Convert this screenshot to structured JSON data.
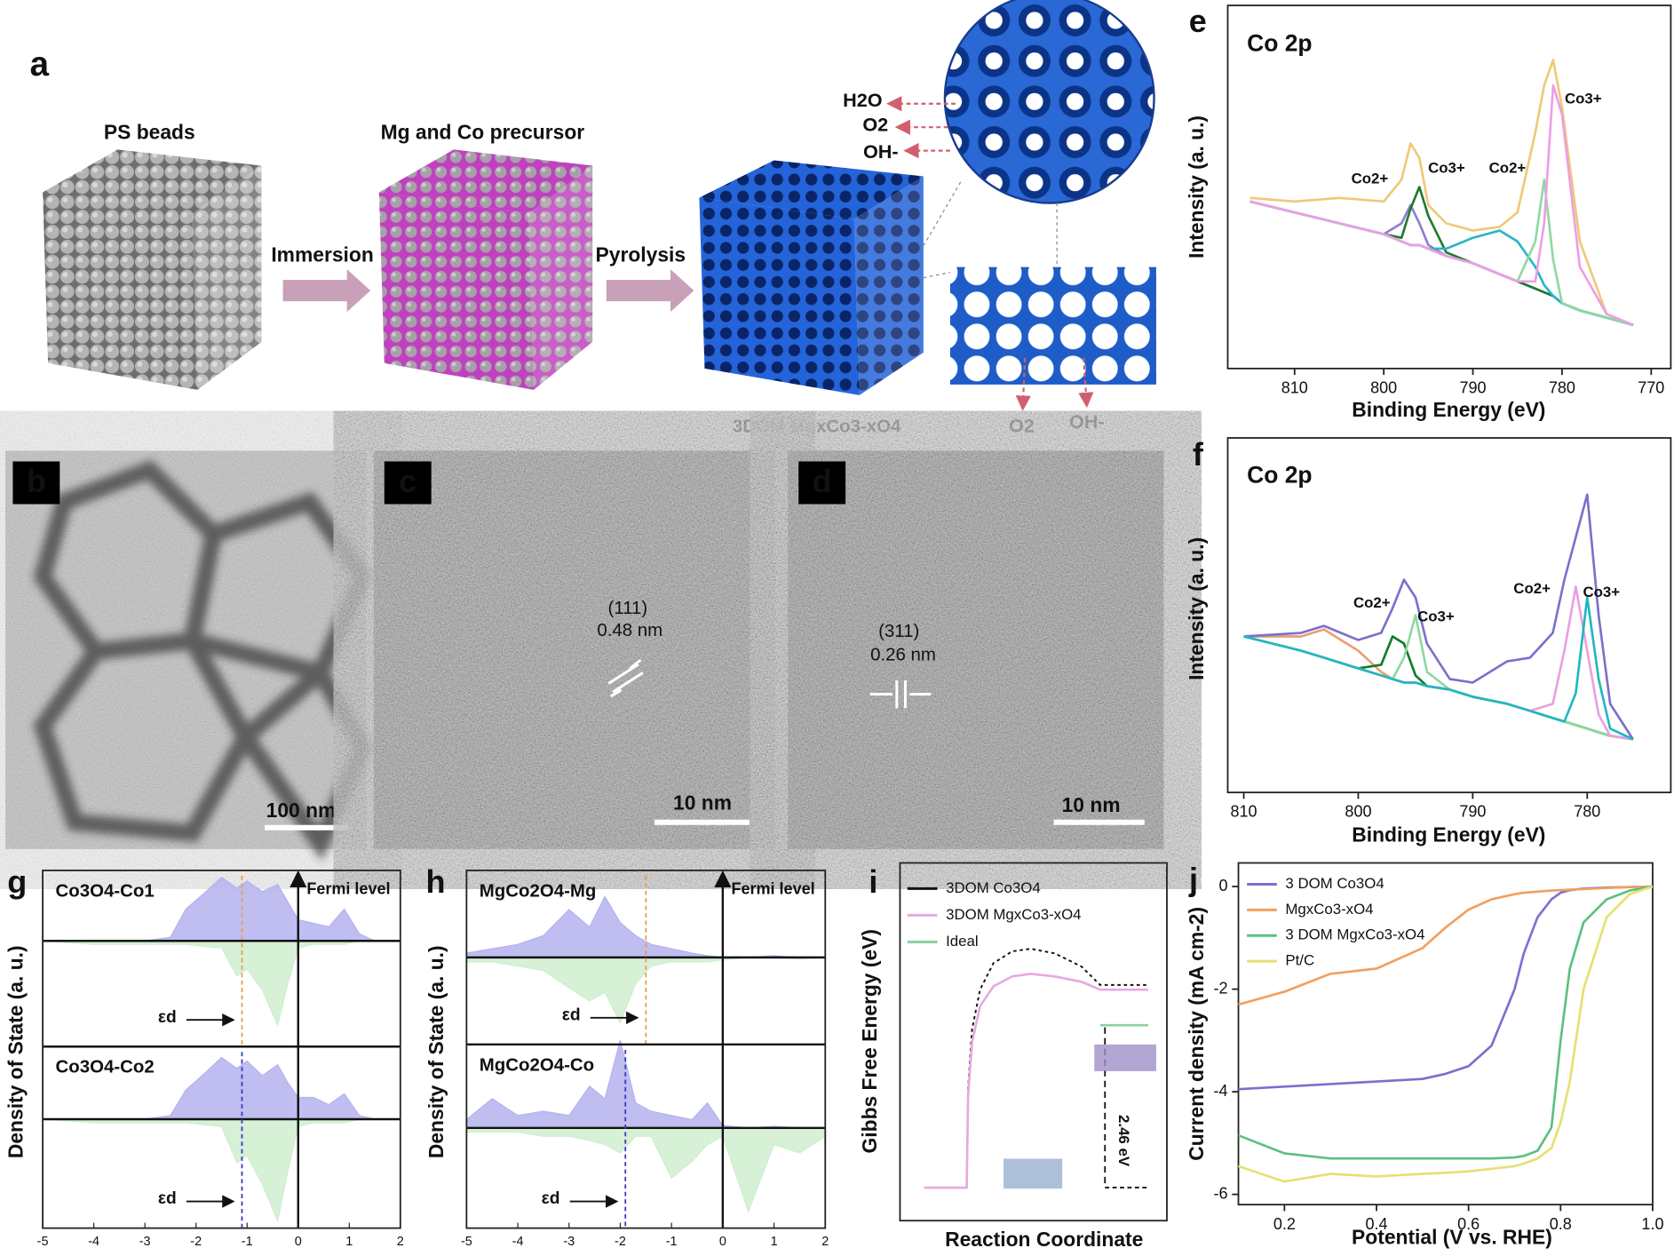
{
  "panel_labels": [
    "a",
    "b",
    "c",
    "d",
    "e",
    "f",
    "g",
    "h",
    "i",
    "j"
  ],
  "schematic": {
    "ps_beads": "PS beads",
    "precursor": "Mg and Co  precursor",
    "immersion": "Immersion",
    "pyrolysis": "Pyrolysis",
    "product": "3DOM MgxCo3-xO4",
    "species_out": [
      "H2O",
      "O2",
      "OH-"
    ],
    "species_bottom": [
      "O2",
      "OH-"
    ]
  },
  "tem": {
    "b_scale": "100 nm",
    "c_plane": "(111)",
    "c_spacing": "0.48 nm",
    "c_scale": "10 nm",
    "d_plane": "(311)",
    "d_spacing": "0.26 nm",
    "d_scale": "10 nm"
  },
  "chart_data": [
    {
      "type": "line",
      "title": "Co 2p",
      "xlabel": "Binding Energy (eV)",
      "ylabel": "Intensity (a. u.)",
      "xlim": [
        817.5,
        767.8
      ],
      "xticks": [
        810,
        800,
        790,
        780,
        770
      ],
      "ylim": [
        0,
        1
      ],
      "yticks": [],
      "annotations": [
        "Co2+",
        "Co3+",
        "Co2+",
        "Co3+"
      ],
      "x": [
        815,
        810,
        805,
        800,
        798,
        797,
        796,
        795,
        793,
        790,
        787,
        785,
        783,
        782,
        781,
        780,
        778,
        775,
        772
      ],
      "series": [
        {
          "color": "#f0c878",
          "values": [
            0.47,
            0.46,
            0.47,
            0.46,
            0.52,
            0.62,
            0.58,
            0.45,
            0.4,
            0.38,
            0.39,
            0.43,
            0.65,
            0.78,
            0.85,
            0.72,
            0.35,
            0.15,
            0.12
          ]
        },
        {
          "color": "#4f72c8",
          "values": [
            0.46,
            0.43,
            0.4,
            0.37,
            0.35,
            0.34,
            0.34,
            0.33,
            0.31,
            0.29,
            0.26,
            0.24,
            0.22,
            0.21,
            0.2,
            0.18,
            0.16,
            0.14,
            0.12
          ]
        },
        {
          "color": "#8a80d0",
          "values": [
            0.46,
            0.43,
            0.4,
            0.37,
            0.4,
            0.45,
            0.4,
            0.34,
            0.31,
            0.29,
            0.26,
            0.24,
            0.22,
            0.21,
            0.2,
            0.18,
            0.16,
            0.14,
            0.12
          ]
        },
        {
          "color": "#1f7a2e",
          "values": [
            0.46,
            0.43,
            0.4,
            0.37,
            0.36,
            0.44,
            0.5,
            0.42,
            0.32,
            0.29,
            0.26,
            0.24,
            0.22,
            0.21,
            0.2,
            0.18,
            0.16,
            0.14,
            0.12
          ]
        },
        {
          "color": "#2ab5c8",
          "values": [
            0.46,
            0.43,
            0.4,
            0.37,
            0.35,
            0.34,
            0.34,
            0.33,
            0.33,
            0.36,
            0.38,
            0.35,
            0.28,
            0.23,
            0.2,
            0.18,
            0.16,
            0.14,
            0.12
          ]
        },
        {
          "color": "#8fd9a0",
          "values": [
            0.46,
            0.43,
            0.4,
            0.37,
            0.35,
            0.34,
            0.34,
            0.33,
            0.31,
            0.29,
            0.26,
            0.24,
            0.35,
            0.52,
            0.3,
            0.18,
            0.16,
            0.14,
            0.12
          ]
        },
        {
          "color": "#ee9ee6",
          "values": [
            0.46,
            0.43,
            0.4,
            0.37,
            0.35,
            0.34,
            0.34,
            0.33,
            0.31,
            0.29,
            0.26,
            0.24,
            0.24,
            0.4,
            0.78,
            0.7,
            0.28,
            0.15,
            0.12
          ]
        }
      ]
    },
    {
      "type": "line",
      "title": "Co 2p",
      "xlabel": "Binding Energy (eV)",
      "ylabel": "Intensity (a. u.)",
      "xlim": [
        811.4,
        772.7
      ],
      "xticks": [
        810,
        800,
        790,
        780
      ],
      "ylim": [
        0,
        1
      ],
      "yticks": [],
      "annotations": [
        "Co2+",
        "Co3+",
        "Co2+",
        "Co3+"
      ],
      "x": [
        810,
        805,
        803,
        800,
        798,
        797,
        796,
        795,
        794,
        792,
        790,
        787,
        785,
        783,
        782,
        781,
        780,
        779,
        778,
        776
      ],
      "series": [
        {
          "color": "#e0e070",
          "values": [
            0.44,
            0.4,
            0.38,
            0.35,
            0.33,
            0.32,
            0.31,
            0.31,
            0.3,
            0.29,
            0.27,
            0.25,
            0.23,
            0.21,
            0.2,
            0.19,
            0.18,
            0.17,
            0.16,
            0.15
          ]
        },
        {
          "color": "#e8a070",
          "values": [
            0.44,
            0.44,
            0.46,
            0.4,
            0.34,
            0.32,
            0.31,
            0.31,
            0.3,
            0.29,
            0.27,
            0.25,
            0.23,
            0.21,
            0.2,
            0.19,
            0.18,
            0.17,
            0.16,
            0.15
          ]
        },
        {
          "color": "#7b70cc",
          "values": [
            0.44,
            0.45,
            0.47,
            0.43,
            0.45,
            0.52,
            0.6,
            0.55,
            0.42,
            0.32,
            0.31,
            0.37,
            0.38,
            0.45,
            0.6,
            0.72,
            0.84,
            0.5,
            0.25,
            0.15
          ]
        },
        {
          "color": "#137a2a",
          "values": [
            0.44,
            0.4,
            0.38,
            0.35,
            0.36,
            0.44,
            0.42,
            0.33,
            0.3,
            0.29,
            0.27,
            0.25,
            0.23,
            0.21,
            0.2,
            0.19,
            0.18,
            0.17,
            0.16,
            0.15
          ]
        },
        {
          "color": "#8ed8a0",
          "values": [
            0.44,
            0.4,
            0.38,
            0.35,
            0.33,
            0.32,
            0.38,
            0.5,
            0.34,
            0.29,
            0.27,
            0.25,
            0.23,
            0.21,
            0.2,
            0.19,
            0.18,
            0.17,
            0.16,
            0.15
          ]
        },
        {
          "color": "#e9a0e0",
          "values": [
            0.44,
            0.4,
            0.38,
            0.35,
            0.33,
            0.32,
            0.31,
            0.31,
            0.3,
            0.29,
            0.27,
            0.25,
            0.23,
            0.25,
            0.4,
            0.58,
            0.4,
            0.22,
            0.16,
            0.15
          ]
        },
        {
          "color": "#20b8c0",
          "values": [
            0.44,
            0.4,
            0.38,
            0.35,
            0.33,
            0.32,
            0.31,
            0.31,
            0.3,
            0.29,
            0.27,
            0.25,
            0.23,
            0.21,
            0.2,
            0.28,
            0.55,
            0.32,
            0.18,
            0.15
          ]
        }
      ]
    },
    {
      "type": "dos",
      "ylabel": "Density of State (a. u.)",
      "fermi_label": "Fermi level",
      "epsilon_label": "εd",
      "xlim": [
        -5,
        2
      ],
      "xticks": [
        -5,
        -4,
        -3,
        -2,
        -1,
        0,
        1,
        2
      ],
      "up_color": "#b5b2ee",
      "down_color": "#cfeecf",
      "x": [
        -5,
        -4,
        -3,
        -2.5,
        -2.2,
        -1.8,
        -1.5,
        -1.2,
        -1,
        -0.7,
        -0.4,
        -0.2,
        0,
        0.3,
        0.6,
        0.9,
        1.2,
        1.5,
        2
      ],
      "panels": [
        {
          "title": "Co3O4-Co1",
          "ylim": [
            -1.5,
            1
          ],
          "epsilon_d": -1.1,
          "epsilon_color": "#e0a050",
          "up": [
            0,
            0,
            0,
            0.05,
            0.45,
            0.7,
            0.9,
            0.75,
            0.85,
            0.7,
            0.8,
            0.55,
            0.3,
            0.25,
            0.2,
            0.45,
            0.1,
            0,
            0
          ],
          "down": [
            0,
            -0.05,
            -0.05,
            -0.05,
            -0.05,
            -0.08,
            -0.1,
            -0.5,
            -0.4,
            -0.7,
            -1.2,
            -0.6,
            -0.1,
            -0.05,
            -0.05,
            -0.05,
            0,
            0,
            0
          ]
        },
        {
          "title": "Co3O4-Co2",
          "ylim": [
            -1.5,
            1
          ],
          "epsilon_d": -1.1,
          "epsilon_color": "#3a3ac0",
          "up": [
            0,
            0,
            0,
            0.05,
            0.4,
            0.65,
            0.85,
            0.7,
            0.8,
            0.6,
            0.75,
            0.5,
            0.3,
            0.3,
            0.2,
            0.35,
            0.05,
            0,
            0
          ],
          "down": [
            0,
            -0.05,
            -0.05,
            -0.05,
            -0.05,
            -0.08,
            -0.1,
            -0.6,
            -0.5,
            -0.9,
            -1.4,
            -0.7,
            -0.1,
            -0.05,
            -0.05,
            -0.05,
            0,
            0,
            0
          ]
        }
      ]
    },
    {
      "type": "dos",
      "ylabel": "Density of State (a. u.)",
      "fermi_label": "Fermi level",
      "epsilon_label": "εd",
      "xlim": [
        -5,
        2
      ],
      "xticks": [
        -5,
        -4,
        -3,
        -2,
        -1,
        0,
        1,
        2
      ],
      "up_color": "#b5b2ee",
      "down_color": "#cfeecf",
      "x": [
        -5,
        -4.5,
        -4,
        -3.5,
        -3,
        -2.6,
        -2.3,
        -2,
        -1.7,
        -1.4,
        -1,
        -0.6,
        -0.3,
        0,
        0.5,
        1,
        1.5,
        2
      ],
      "panels": [
        {
          "title": "MgCo2O4-Mg",
          "ylim": [
            -1,
            1
          ],
          "epsilon_d": -1.5,
          "epsilon_color": "#e0a050",
          "up": [
            0.05,
            0.1,
            0.15,
            0.25,
            0.55,
            0.35,
            0.7,
            0.4,
            0.25,
            0.15,
            0.1,
            0.05,
            0.02,
            0,
            0,
            0.02,
            0,
            0
          ],
          "down": [
            -0.05,
            -0.05,
            -0.1,
            -0.15,
            -0.35,
            -0.5,
            -0.4,
            -0.75,
            -0.3,
            -0.1,
            -0.05,
            -0.05,
            -0.05,
            -0.03,
            0,
            0,
            -0.02,
            0
          ]
        },
        {
          "title": "MgCo2O4-Co",
          "ylim": [
            -1.2,
            1
          ],
          "epsilon_d": -1.9,
          "epsilon_color": "#3a3ac0",
          "up": [
            0.1,
            0.35,
            0.15,
            0.2,
            0.15,
            0.5,
            0.35,
            1.05,
            0.3,
            0.2,
            0.15,
            0.1,
            0.3,
            0.03,
            0,
            0.02,
            0,
            0
          ],
          "down": [
            -0.05,
            -0.05,
            -0.05,
            -0.1,
            -0.1,
            -0.15,
            -0.2,
            -0.3,
            -0.1,
            -0.1,
            -0.6,
            -0.4,
            -0.2,
            -0.1,
            -1.0,
            -0.2,
            -0.3,
            -0.1
          ]
        }
      ]
    },
    {
      "type": "line",
      "xlabel": "Reaction Coordinate",
      "ylabel": "Gibbs Free Energy (eV)",
      "xlim": [
        0,
        1
      ],
      "xticks": [],
      "ylim": [
        -0.5,
        4.92
      ],
      "yticks": [],
      "annotations": [
        "2.46 eV"
      ],
      "series": [
        {
          "name": "3DOM Co3O4",
          "color": "#111111",
          "dashed": true,
          "x": [
            0.09,
            0.25,
            0.255,
            0.27,
            0.3,
            0.35,
            0.42,
            0.49,
            0.58,
            0.68,
            0.75,
            0.93
          ],
          "values": [
            0,
            0,
            1.5,
            2.4,
            3.0,
            3.4,
            3.58,
            3.62,
            3.55,
            3.35,
            3.07,
            3.07
          ]
        },
        {
          "name": "3DOM MgxCo3-xO4",
          "color": "#e8a8e0",
          "x": [
            0.09,
            0.25,
            0.255,
            0.27,
            0.3,
            0.35,
            0.42,
            0.49,
            0.58,
            0.68,
            0.75,
            0.93
          ],
          "values": [
            0,
            0,
            1.4,
            2.2,
            2.75,
            3.05,
            3.2,
            3.24,
            3.2,
            3.12,
            3.0,
            3.0
          ]
        },
        {
          "name": "Ideal",
          "color": "#8fd0a0",
          "x": [
            0.75,
            0.93
          ],
          "values": [
            2.46,
            2.46
          ]
        }
      ]
    },
    {
      "type": "line",
      "xlabel": "Potential (V vs. RHE)",
      "ylabel": "Current density (mA cm-2)",
      "xlim": [
        0.1,
        1
      ],
      "xticks": [
        0.2,
        0.4,
        0.6,
        0.8,
        {
          "value": 1,
          "label": "1.0"
        }
      ],
      "ylim": [
        -6.2,
        0.46
      ],
      "yticks": [
        0,
        -2,
        -4,
        -6
      ],
      "x": [
        0.1,
        0.2,
        0.3,
        0.4,
        0.5,
        0.55,
        0.6,
        0.65,
        0.7,
        0.72,
        0.75,
        0.78,
        0.8,
        0.82,
        0.85,
        0.9,
        0.95,
        1
      ],
      "series": [
        {
          "name": "3 DOM Co3O4",
          "color": "#7b6fd0",
          "values": [
            -3.95,
            -3.9,
            -3.85,
            -3.8,
            -3.75,
            -3.65,
            -3.5,
            -3.1,
            -2.0,
            -1.3,
            -0.6,
            -0.25,
            -0.12,
            -0.07,
            -0.04,
            -0.02,
            -0.01,
            0
          ]
        },
        {
          "name": "MgxCo3-xO4",
          "color": "#f0a060",
          "values": [
            -2.3,
            -2.05,
            -1.7,
            -1.6,
            -1.2,
            -0.8,
            -0.45,
            -0.25,
            -0.15,
            -0.12,
            -0.1,
            -0.08,
            -0.07,
            -0.06,
            -0.05,
            -0.03,
            -0.01,
            0
          ]
        },
        {
          "name": "3 DOM MgxCo3-xO4",
          "color": "#5cc080",
          "values": [
            -4.85,
            -5.2,
            -5.3,
            -5.3,
            -5.3,
            -5.3,
            -5.3,
            -5.3,
            -5.28,
            -5.25,
            -5.15,
            -4.7,
            -3.0,
            -1.6,
            -0.7,
            -0.25,
            -0.08,
            0
          ]
        },
        {
          "name": "Pt/C",
          "color": "#e6e070",
          "values": [
            -5.45,
            -5.75,
            -5.6,
            -5.65,
            -5.6,
            -5.58,
            -5.55,
            -5.5,
            -5.45,
            -5.4,
            -5.3,
            -5.1,
            -4.6,
            -3.8,
            -2.0,
            -0.6,
            -0.15,
            0
          ]
        }
      ]
    }
  ]
}
